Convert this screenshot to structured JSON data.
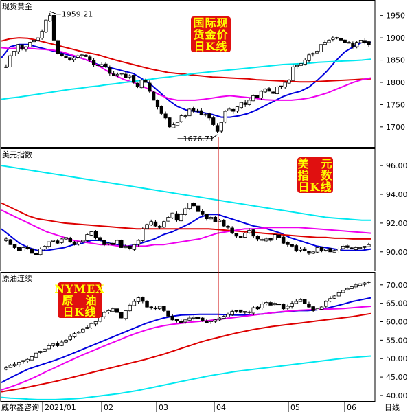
{
  "colors": {
    "blue": "#0000dd",
    "red": "#dd0000",
    "magenta": "#ee00ee",
    "cyan": "#00e8f0",
    "badge_bg": "#e01010",
    "badge_text": "#ffff00",
    "vline": "#cc0000"
  },
  "footer": {
    "source": "威尔鑫咨询",
    "period": "日线"
  },
  "chart_data": [
    {
      "type": "candlestick",
      "title": "现货黄金",
      "badge": [
        "国际现",
        "货金价",
        "日K线"
      ],
      "ylim": [
        1655,
        1985
      ],
      "yticks": [
        1700,
        1750,
        1800,
        1850,
        1900,
        1950
      ],
      "ytick_labels": [
        "1700",
        "1750",
        "1800",
        "1850",
        "1900",
        "1950"
      ],
      "annotations": [
        {
          "text": "1959.21",
          "value": 1959.21
        },
        {
          "text": "1676.71",
          "value": 1676.71
        }
      ],
      "close": [
        1835,
        1860,
        1870,
        1885,
        1875,
        1880,
        1890,
        1895,
        1900,
        1915,
        1940,
        1950,
        1895,
        1865,
        1860,
        1855,
        1850,
        1855,
        1860,
        1862,
        1858,
        1850,
        1840,
        1838,
        1840,
        1835,
        1820,
        1815,
        1818,
        1820,
        1810,
        1815,
        1800,
        1790,
        1805,
        1800,
        1780,
        1760,
        1745,
        1730,
        1720,
        1700,
        1705,
        1710,
        1725,
        1725,
        1740,
        1735,
        1735,
        1728,
        1728,
        1720,
        1705,
        1690,
        1710,
        1735,
        1740,
        1735,
        1745,
        1755,
        1750,
        1760,
        1770,
        1765,
        1780,
        1785,
        1780,
        1775,
        1790,
        1790,
        1800,
        1805,
        1835,
        1838,
        1842,
        1850,
        1862,
        1865,
        1870,
        1885,
        1890,
        1895,
        1900,
        1900,
        1895,
        1890,
        1888,
        1880,
        1890,
        1895,
        1890,
        1885
      ],
      "series": [
        {
          "name": "",
          "color": "#0000dd",
          "values": [
            1855,
            1880,
            1885,
            1885,
            1880,
            1875,
            1870,
            1865,
            1860,
            1855,
            1848,
            1840,
            1835,
            1830,
            1825,
            1820,
            1808,
            1795,
            1778,
            1760,
            1746,
            1738,
            1735,
            1732,
            1728,
            1722,
            1722,
            1725,
            1730,
            1738,
            1748,
            1758,
            1768,
            1775,
            1780,
            1790,
            1806,
            1825,
            1848,
            1868,
            1880,
            1890,
            1890
          ]
        },
        {
          "name": "",
          "color": "#dd0000",
          "values": [
            1893,
            1898,
            1900,
            1899,
            1895,
            1890,
            1885,
            1880,
            1875,
            1870,
            1866,
            1862,
            1856,
            1850,
            1845,
            1840,
            1835,
            1830,
            1826,
            1822,
            1820,
            1818,
            1816,
            1814,
            1812,
            1811,
            1810,
            1809,
            1808,
            1806,
            1805,
            1804,
            1803,
            1802,
            1801,
            1801,
            1802,
            1803,
            1804,
            1805,
            1806,
            1807,
            1808
          ]
        },
        {
          "name": "",
          "color": "#ee00ee",
          "values": [
            1878,
            1876,
            1877,
            1877,
            1875,
            1874,
            1872,
            1868,
            1862,
            1855,
            1848,
            1838,
            1826,
            1815,
            1806,
            1800,
            1792,
            1782,
            1772,
            1764,
            1760,
            1760,
            1760,
            1762,
            1765,
            1768,
            1770,
            1768,
            1766,
            1764,
            1761,
            1760,
            1760,
            1760,
            1762,
            1765,
            1770,
            1776,
            1784,
            1792,
            1800,
            1806,
            1810
          ]
        },
        {
          "name": "",
          "color": "#00e8f0",
          "values": [
            1762,
            1765,
            1767,
            1770,
            1773,
            1776,
            1779,
            1782,
            1785,
            1787,
            1790,
            1792,
            1795,
            1797,
            1800,
            1802,
            1805,
            1807,
            1810,
            1812,
            1815,
            1817,
            1820,
            1822,
            1824,
            1826,
            1828,
            1830,
            1832,
            1834,
            1836,
            1838,
            1840,
            1841,
            1842,
            1843,
            1845,
            1846,
            1847,
            1848,
            1849,
            1850,
            1852
          ]
        }
      ]
    },
    {
      "type": "candlestick",
      "title": "美元指数",
      "badge": [
        "美　元",
        "指　数",
        "日K线"
      ],
      "ylim": [
        88.7,
        97.2
      ],
      "yticks": [
        90,
        92,
        94,
        96
      ],
      "ytick_labels": [
        "90.00",
        "92.00",
        "94.00",
        "96.00"
      ],
      "close": [
        90.9,
        90.5,
        90.3,
        90.1,
        90.3,
        90.2,
        89.9,
        89.8,
        90.2,
        90.4,
        90.7,
        90.8,
        90.6,
        90.9,
        91.0,
        90.7,
        90.5,
        90.7,
        90.8,
        91.2,
        91.4,
        91.0,
        90.8,
        90.5,
        90.6,
        90.5,
        90.8,
        90.3,
        90.4,
        90.2,
        90.5,
        90.8,
        91.6,
        91.9,
        92.1,
        91.8,
        91.7,
        92.1,
        92.4,
        92.7,
        92.2,
        92.6,
        93.0,
        93.4,
        93.2,
        92.8,
        92.6,
        92.3,
        92.4,
        92.1,
        92.2,
        91.8,
        91.7,
        91.3,
        91.1,
        91.0,
        91.3,
        91.5,
        91.1,
        90.9,
        90.8,
        90.9,
        90.8,
        91.2,
        91.0,
        90.6,
        90.5,
        90.4,
        90.1,
        90.2,
        90.1,
        89.9,
        90.0,
        90.3,
        90.1,
        90.2,
        90.0,
        90.1,
        90.2,
        90.4,
        90.3,
        90.2,
        90.3,
        90.3,
        90.4,
        90.5
      ],
      "series": [
        {
          "name": "",
          "color": "#0000dd",
          "values": [
            91.6,
            91.1,
            90.6,
            90.3,
            90.1,
            90.1,
            90.2,
            90.3,
            90.5,
            90.6,
            90.8,
            90.8,
            90.6,
            90.5,
            90.4,
            90.5,
            90.7,
            90.9,
            91.2,
            91.4,
            91.7,
            92.0,
            92.4,
            92.6,
            92.6,
            92.4,
            92.2,
            92.0,
            91.8,
            91.7,
            91.5,
            91.3,
            91.0,
            90.8,
            90.6,
            90.4,
            90.3,
            90.2,
            90.1,
            90.1,
            90.1,
            90.2
          ]
        },
        {
          "name": "",
          "color": "#dd0000",
          "values": [
            93.4,
            93.1,
            92.8,
            92.5,
            92.3,
            92.2,
            92.1,
            92.0,
            91.95,
            91.9,
            91.85,
            91.8,
            91.75,
            91.7,
            91.65,
            91.6,
            91.6,
            91.6,
            91.6,
            91.6,
            91.6,
            91.6,
            91.6,
            91.6,
            91.55,
            91.5,
            91.45,
            91.4,
            91.35,
            91.3,
            91.25,
            91.2,
            91.15,
            91.1,
            91.05,
            91.0,
            91.0,
            90.95,
            90.95,
            90.9,
            90.9,
            90.9
          ]
        },
        {
          "name": "",
          "color": "#ee00ee",
          "values": [
            92.9,
            92.6,
            92.3,
            92.0,
            91.7,
            91.4,
            91.2,
            91.0,
            90.8,
            90.7,
            90.6,
            90.5,
            90.5,
            90.4,
            90.4,
            90.4,
            90.4,
            90.5,
            90.5,
            90.6,
            90.7,
            90.8,
            90.9,
            91.1,
            91.3,
            91.4,
            91.5,
            91.6,
            91.6,
            91.65,
            91.7,
            91.7,
            91.7,
            91.7,
            91.65,
            91.6,
            91.55,
            91.5,
            91.45,
            91.4,
            91.35,
            91.3
          ]
        },
        {
          "name": "",
          "color": "#00e8f0",
          "values": [
            96.0,
            95.9,
            95.8,
            95.7,
            95.6,
            95.5,
            95.4,
            95.3,
            95.2,
            95.1,
            95.0,
            94.9,
            94.8,
            94.7,
            94.6,
            94.5,
            94.4,
            94.3,
            94.2,
            94.1,
            94.0,
            93.9,
            93.8,
            93.7,
            93.6,
            93.5,
            93.4,
            93.3,
            93.2,
            93.1,
            93.0,
            92.9,
            92.8,
            92.7,
            92.6,
            92.5,
            92.4,
            92.35,
            92.3,
            92.25,
            92.2,
            92.2
          ]
        }
      ]
    },
    {
      "type": "candlestick",
      "title": "原油连续",
      "badge": [
        "NYMEX",
        "原　油",
        "日K线"
      ],
      "ylim": [
        38.5,
        73.5
      ],
      "yticks": [
        40,
        45,
        50,
        55,
        60,
        65,
        70
      ],
      "ytick_labels": [
        "40.00",
        "45.00",
        "50.00",
        "55.00",
        "60.00",
        "65.00",
        "70.00"
      ],
      "xticks": [
        "2021/01",
        "02",
        "03",
        "04",
        "05",
        "06"
      ],
      "close": [
        47.5,
        48.2,
        48.5,
        49.0,
        49.5,
        49.8,
        50.5,
        51.5,
        52.0,
        52.6,
        53.5,
        54.0,
        53.5,
        54.5,
        55.0,
        56.0,
        56.8,
        57.2,
        58.0,
        58.5,
        59.5,
        60.0,
        61.5,
        62.5,
        63.0,
        63.5,
        62.5,
        61.0,
        63.0,
        64.5,
        65.5,
        66.5,
        65.5,
        64.0,
        63.8,
        63.5,
        64.2,
        63.0,
        61.5,
        60.5,
        60.2,
        59.8,
        60.5,
        61.0,
        61.2,
        60.8,
        60.3,
        59.8,
        60.2,
        60.5,
        61.0,
        61.5,
        62.0,
        62.8,
        63.0,
        62.5,
        62.8,
        62.5,
        63.8,
        63.5,
        64.8,
        65.2,
        64.5,
        65.0,
        64.8,
        63.5,
        64.2,
        65.0,
        65.5,
        66.0,
        65.0,
        64.0,
        63.0,
        63.5,
        64.0,
        65.5,
        66.3,
        67.0,
        68.0,
        68.5,
        69.0,
        69.5,
        70.0,
        70.3,
        70.5,
        70.8
      ],
      "series": [
        {
          "name": "",
          "color": "#0000dd",
          "values": [
            43.5,
            44.8,
            46.0,
            47.2,
            48.0,
            48.8,
            49.6,
            50.5,
            51.5,
            52.5,
            53.5,
            54.5,
            55.5,
            56.5,
            57.5,
            58.5,
            59.5,
            60.3,
            61.0,
            61.5,
            61.8,
            61.9,
            62.0,
            62.0,
            62.0,
            61.9,
            61.8,
            61.8,
            61.9,
            62.1,
            62.4,
            62.6,
            62.8,
            63.0,
            63.0,
            63.2,
            63.6,
            64.2,
            64.8,
            65.5,
            66.0,
            66.5
          ]
        },
        {
          "name": "",
          "color": "#dd0000",
          "values": [
            41.0,
            41.4,
            41.8,
            42.3,
            42.8,
            43.3,
            43.8,
            44.4,
            45.0,
            45.6,
            46.2,
            46.8,
            47.4,
            48.0,
            48.6,
            49.2,
            49.8,
            50.5,
            51.2,
            52.0,
            52.8,
            53.6,
            54.4,
            55.1,
            55.7,
            56.3,
            56.9,
            57.4,
            57.9,
            58.3,
            58.7,
            59.0,
            59.3,
            59.6,
            59.9,
            60.2,
            60.5,
            60.8,
            61.1,
            61.4,
            61.8,
            62.2
          ]
        },
        {
          "name": "",
          "color": "#ee00ee",
          "values": [
            41.5,
            42.3,
            43.2,
            44.2,
            45.3,
            46.5,
            47.6,
            48.8,
            49.9,
            51.0,
            52.0,
            53.0,
            54.0,
            55.0,
            56.0,
            56.9,
            57.7,
            58.4,
            58.9,
            59.3,
            59.6,
            59.9,
            60.1,
            60.3,
            60.6,
            60.9,
            61.2,
            61.5,
            61.8,
            62.1,
            62.4,
            62.7,
            62.9,
            63.1,
            63.2,
            63.3,
            63.4,
            63.5,
            63.6,
            63.8,
            64.0,
            64.2
          ]
        },
        {
          "name": "",
          "color": "#00e8f0",
          "values": [
            39.5,
            39.3,
            39.2,
            39.0,
            38.9,
            38.9,
            38.9,
            39.0,
            39.1,
            39.3,
            39.6,
            39.9,
            40.2,
            40.5,
            40.9,
            41.3,
            41.8,
            42.3,
            42.8,
            43.3,
            43.8,
            44.3,
            44.8,
            45.3,
            45.7,
            46.1,
            46.5,
            46.8,
            47.1,
            47.4,
            47.7,
            48.0,
            48.3,
            48.6,
            48.9,
            49.2,
            49.5,
            49.8,
            50.1,
            50.3,
            50.5,
            50.7
          ]
        }
      ]
    }
  ]
}
